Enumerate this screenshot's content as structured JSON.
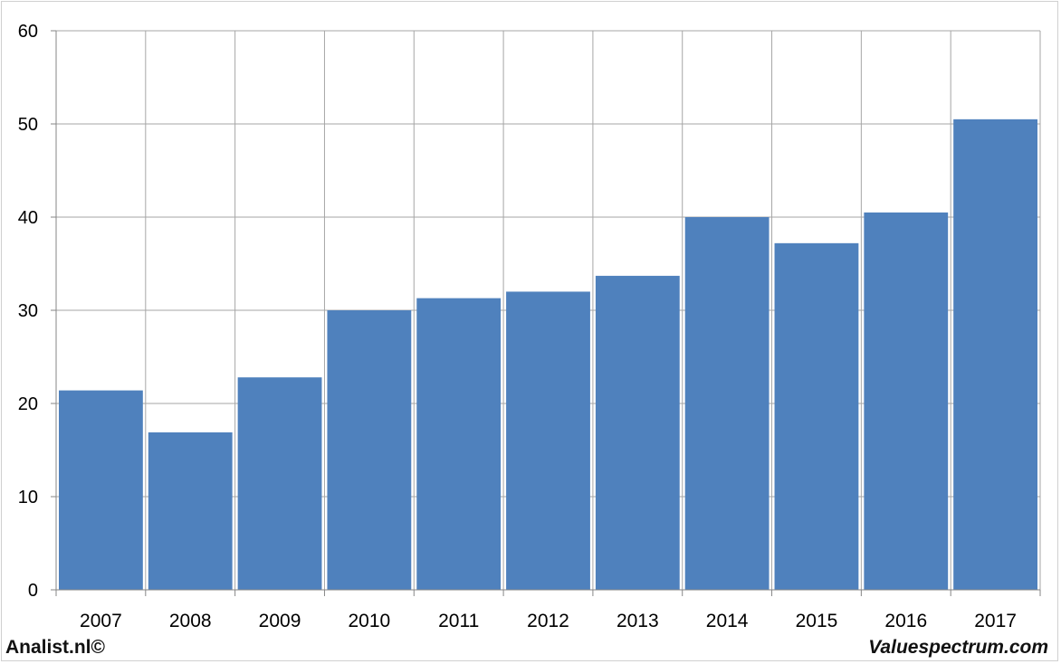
{
  "footer": {
    "left": "Analist.nl©",
    "right": "Valuespectrum.com"
  },
  "colors": {
    "bar": "#4f81bd",
    "grid": "#a6a6a6",
    "axis": "#868686",
    "text": "#000000"
  },
  "chart_data": {
    "type": "bar",
    "categories": [
      "2007",
      "2008",
      "2009",
      "2010",
      "2011",
      "2012",
      "2013",
      "2014",
      "2015",
      "2016",
      "2017"
    ],
    "values": [
      21.4,
      16.9,
      22.8,
      30.0,
      31.3,
      32.0,
      33.7,
      40.0,
      37.2,
      40.5,
      50.5
    ],
    "yticks": [
      0,
      10,
      20,
      30,
      40,
      50,
      60
    ],
    "ylim": [
      0,
      60
    ],
    "grid": true,
    "title": "",
    "xlabel": "",
    "ylabel": ""
  }
}
